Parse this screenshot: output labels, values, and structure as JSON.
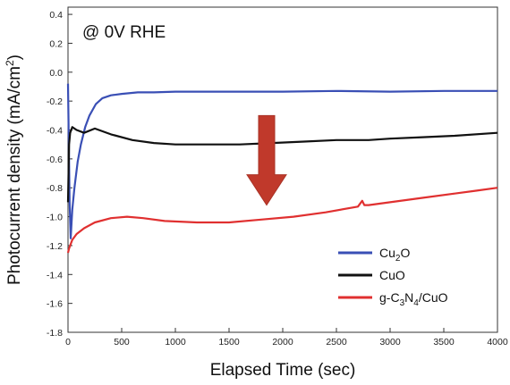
{
  "chart_data": {
    "type": "line",
    "annotation": "@ 0V RHE",
    "xlabel": "Elapsed Time (sec)",
    "ylabel": "Photocurrent density (mA/cm²)",
    "ylabel_parts": {
      "main": "Photocurrent density (mA/cm",
      "sup": "2",
      "end": ")"
    },
    "xlim": [
      0,
      4000
    ],
    "ylim": [
      -1.8,
      0.45
    ],
    "x_ticks": [
      0,
      500,
      1000,
      1500,
      2000,
      2500,
      3000,
      3500,
      4000
    ],
    "y_ticks": [
      0.4,
      0.2,
      0.0,
      -0.2,
      -0.4,
      -0.6,
      -0.8,
      -1.0,
      -1.2,
      -1.4,
      -1.6,
      -1.8
    ],
    "grid": false,
    "legend_position": "bottom-right",
    "arrow": {
      "color": "#c0392b",
      "x": 1850,
      "y_from": -0.3,
      "y_to": -0.92
    },
    "series": [
      {
        "name": "Cu2O",
        "legend": {
          "base": "Cu",
          "sub": "2",
          "rest": "O"
        },
        "color": "#3a4fb5",
        "x": [
          0,
          15,
          25,
          40,
          60,
          90,
          120,
          160,
          200,
          260,
          320,
          400,
          500,
          650,
          800,
          1000,
          1500,
          2000,
          2500,
          3000,
          3500,
          4000
        ],
        "y": [
          -0.08,
          -0.9,
          -1.15,
          -0.95,
          -0.8,
          -0.62,
          -0.5,
          -0.38,
          -0.3,
          -0.22,
          -0.18,
          -0.16,
          -0.15,
          -0.14,
          -0.14,
          -0.135,
          -0.135,
          -0.135,
          -0.13,
          -0.135,
          -0.13,
          -0.13
        ]
      },
      {
        "name": "CuO",
        "legend": {
          "base": "CuO",
          "sub": "",
          "rest": ""
        },
        "color": "#111111",
        "x": [
          0,
          10,
          20,
          40,
          80,
          150,
          250,
          400,
          600,
          800,
          1000,
          1300,
          1600,
          1900,
          2200,
          2500,
          2800,
          3000,
          3300,
          3600,
          4000
        ],
        "y": [
          -0.9,
          -0.5,
          -0.42,
          -0.38,
          -0.4,
          -0.42,
          -0.39,
          -0.43,
          -0.47,
          -0.49,
          -0.5,
          -0.5,
          -0.5,
          -0.49,
          -0.48,
          -0.47,
          -0.47,
          -0.46,
          -0.45,
          -0.44,
          -0.42
        ]
      },
      {
        "name": "g-C3N4/CuO",
        "legend": {
          "base": "g-C",
          "sub": "3",
          "rest": "N",
          "sub2": "4",
          "rest2": "/CuO"
        },
        "color": "#e03030",
        "x": [
          0,
          10,
          20,
          40,
          80,
          150,
          250,
          400,
          550,
          700,
          900,
          1200,
          1500,
          1800,
          2100,
          2400,
          2700,
          2740,
          2760,
          2800,
          3000,
          3300,
          3600,
          3800,
          4000
        ],
        "y": [
          -1.25,
          -1.22,
          -1.2,
          -1.16,
          -1.12,
          -1.08,
          -1.04,
          -1.01,
          -1.0,
          -1.01,
          -1.03,
          -1.04,
          -1.04,
          -1.02,
          -1.0,
          -0.97,
          -0.93,
          -0.89,
          -0.92,
          -0.92,
          -0.9,
          -0.87,
          -0.84,
          -0.82,
          -0.8
        ]
      }
    ]
  }
}
